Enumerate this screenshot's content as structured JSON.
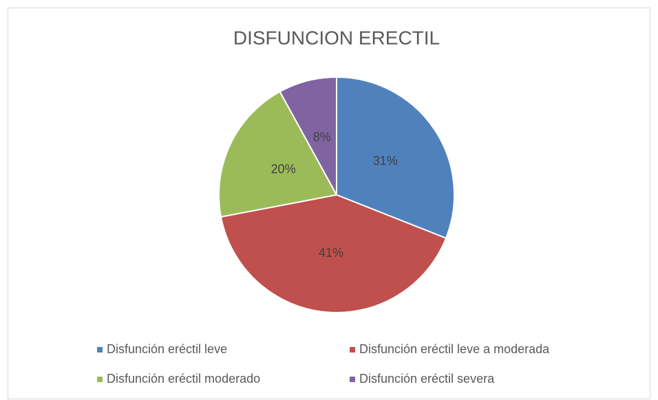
{
  "chart_data": {
    "type": "pie",
    "title": "DISFUNCION ERECTIL",
    "categories": [
      "Disfunción eréctil leve",
      "Disfunción eréctil leve a moderada",
      "Disfunción eréctil moderado",
      "Disfunción eréctil severa"
    ],
    "values": [
      31,
      41,
      20,
      8
    ],
    "value_labels": [
      "31%",
      "41%",
      "20%",
      "8%"
    ],
    "colors": [
      "#4f81bd",
      "#c0504d",
      "#9bbb59",
      "#8064a2"
    ],
    "legend": "bottom"
  }
}
